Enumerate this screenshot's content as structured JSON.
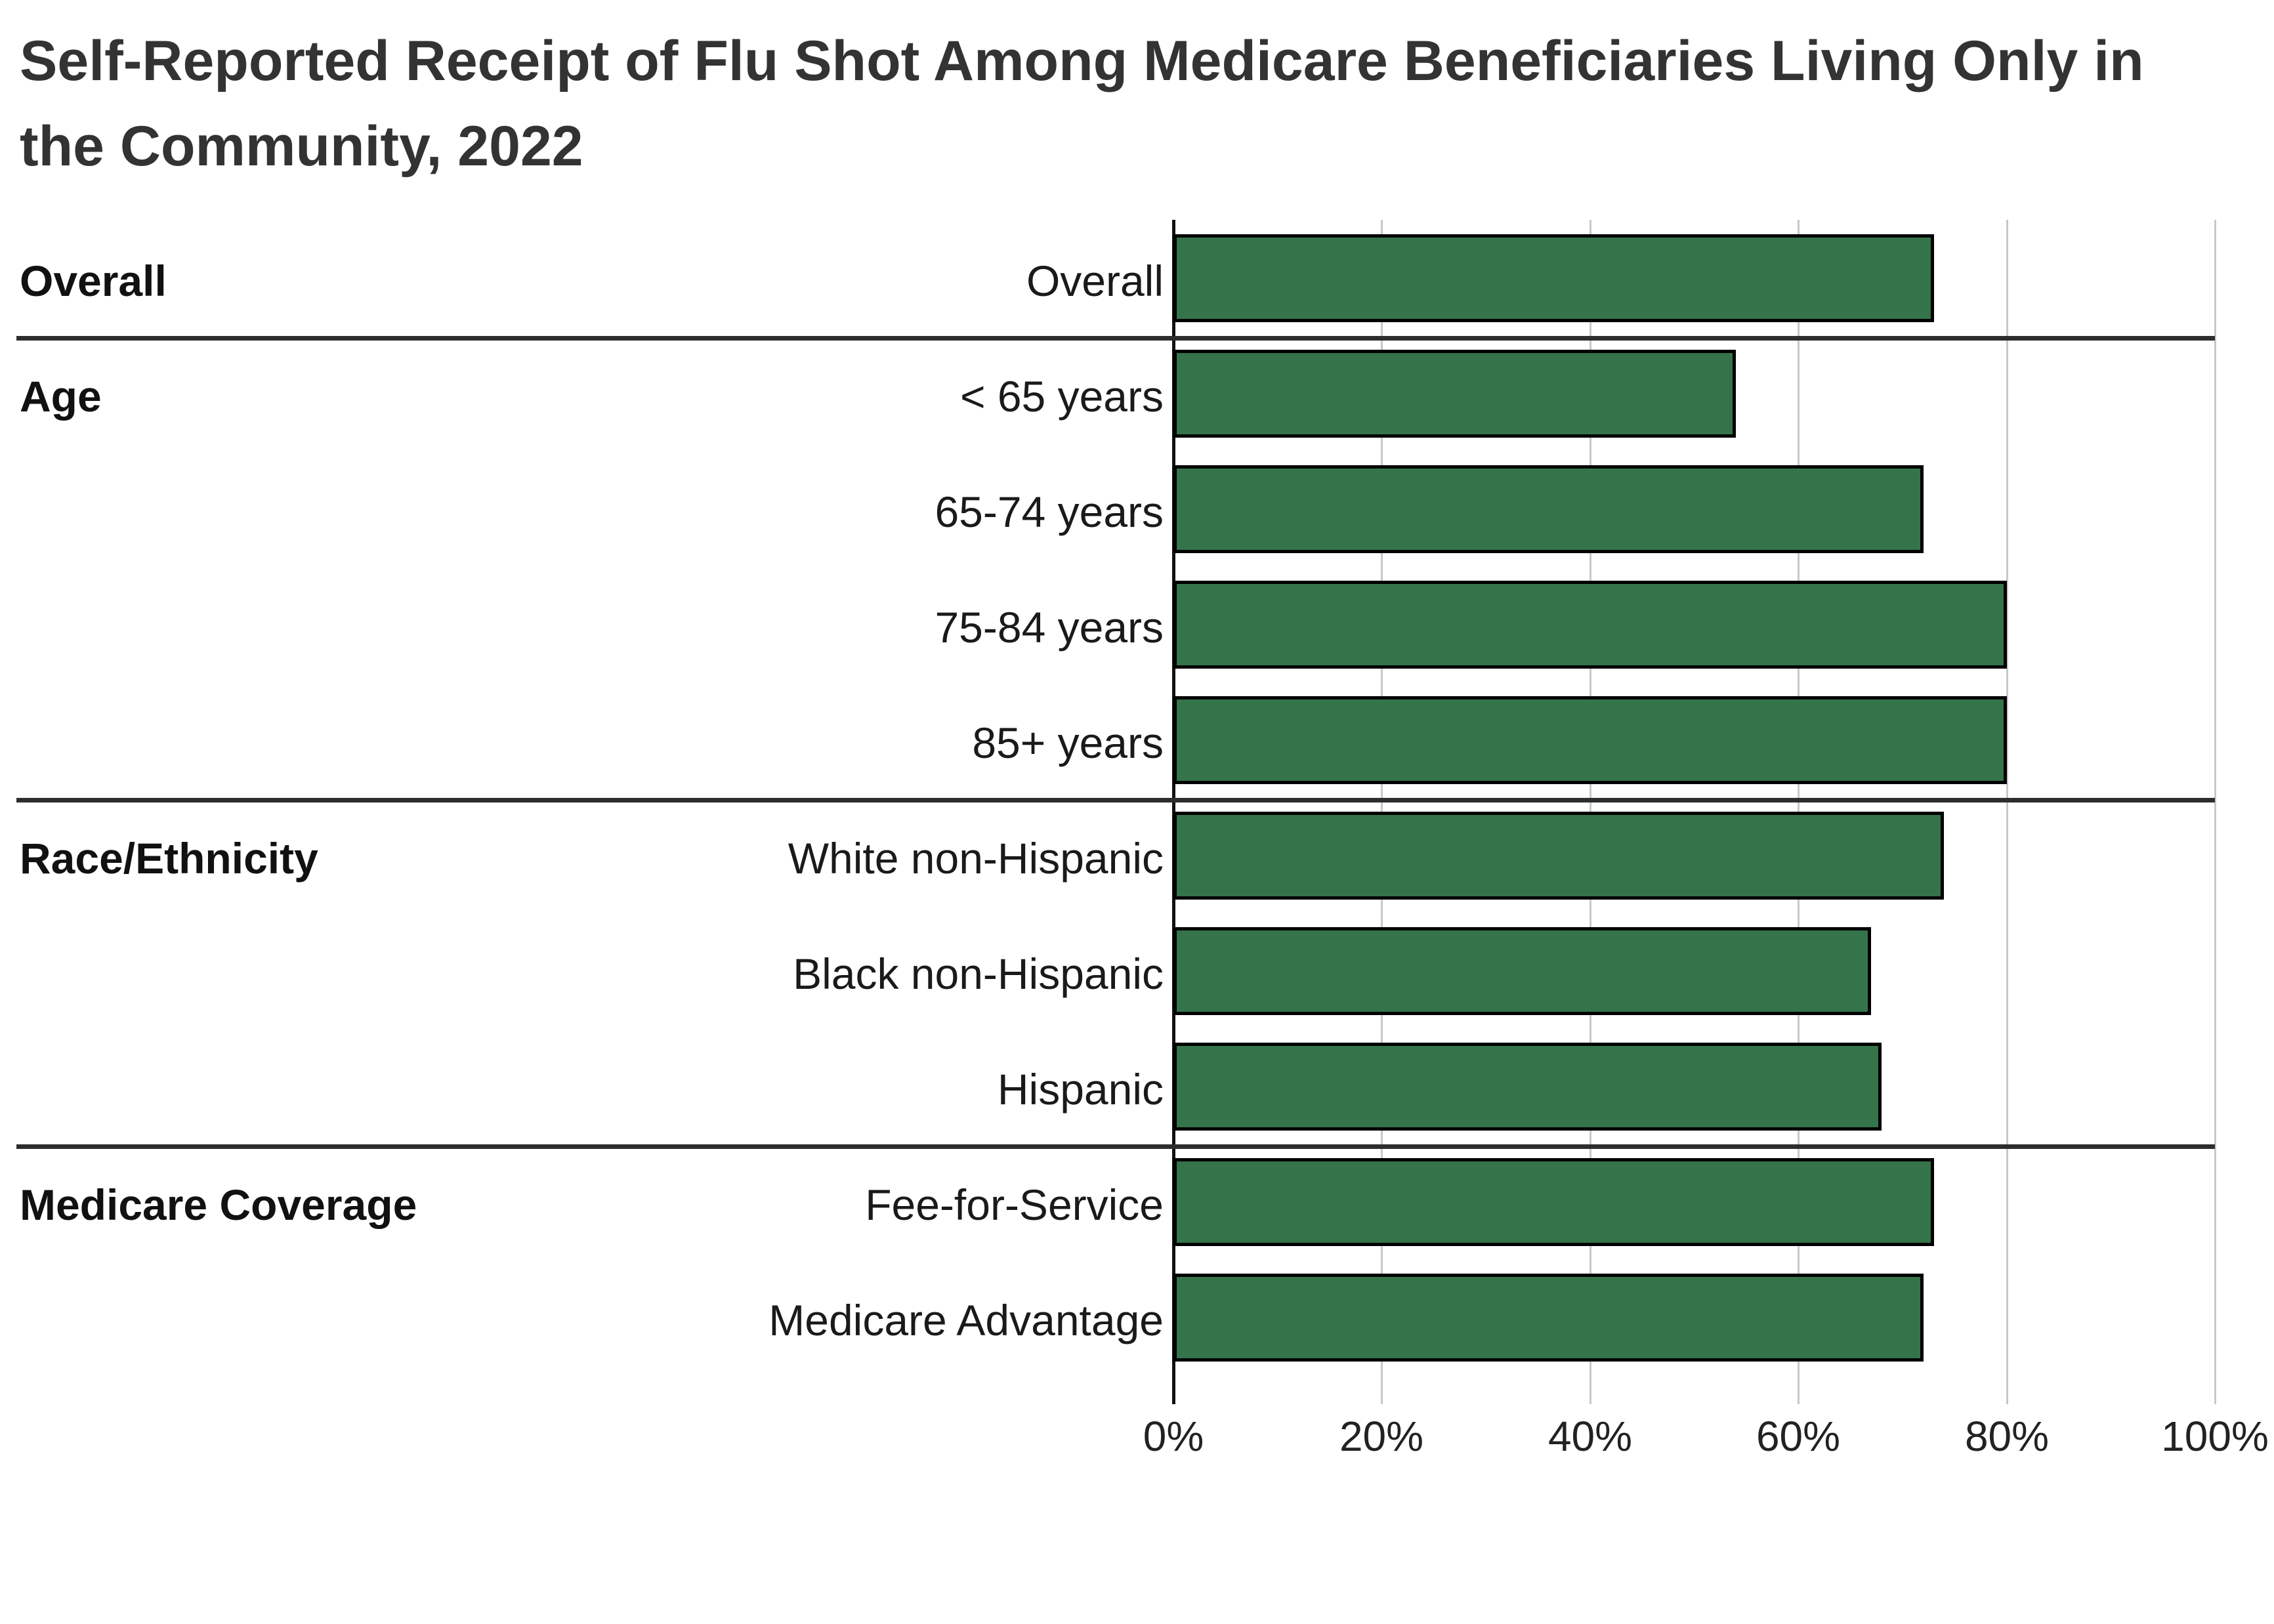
{
  "page": {
    "background_color": "#ffffff"
  },
  "chart_data": {
    "type": "bar",
    "orientation": "horizontal",
    "title": "Self-Reported Receipt of Flu Shot Among Medicare Beneficiaries Living Only in the Community, 2022",
    "value_unit": "%",
    "x_axis": {
      "min": 0,
      "max": 100,
      "tick_labels": [
        "0%",
        "20%",
        "40%",
        "60%",
        "80%",
        "100%"
      ],
      "grid": true
    },
    "colors": {
      "bar_fill": "#35734A",
      "bar_border": "#000000",
      "gridline": "#c8c8c8",
      "axis_line": "#111111",
      "group_separator": "#2d2d2d"
    },
    "groups": [
      {
        "label": "Overall",
        "rows": [
          {
            "label": "Overall",
            "value": 73
          }
        ]
      },
      {
        "label": "Age",
        "rows": [
          {
            "label": "< 65 years",
            "value": 54
          },
          {
            "label": "65-74 years",
            "value": 72
          },
          {
            "label": "75-84 years",
            "value": 80
          },
          {
            "label": "85+ years",
            "value": 80
          }
        ]
      },
      {
        "label": "Race/Ethnicity",
        "rows": [
          {
            "label": "White non-Hispanic",
            "value": 74
          },
          {
            "label": "Black non-Hispanic",
            "value": 67
          },
          {
            "label": "Hispanic",
            "value": 68
          }
        ]
      },
      {
        "label": "Medicare Coverage",
        "rows": [
          {
            "label": "Fee-for-Service",
            "value": 73
          },
          {
            "label": "Medicare Advantage",
            "value": 72
          }
        ]
      }
    ]
  }
}
